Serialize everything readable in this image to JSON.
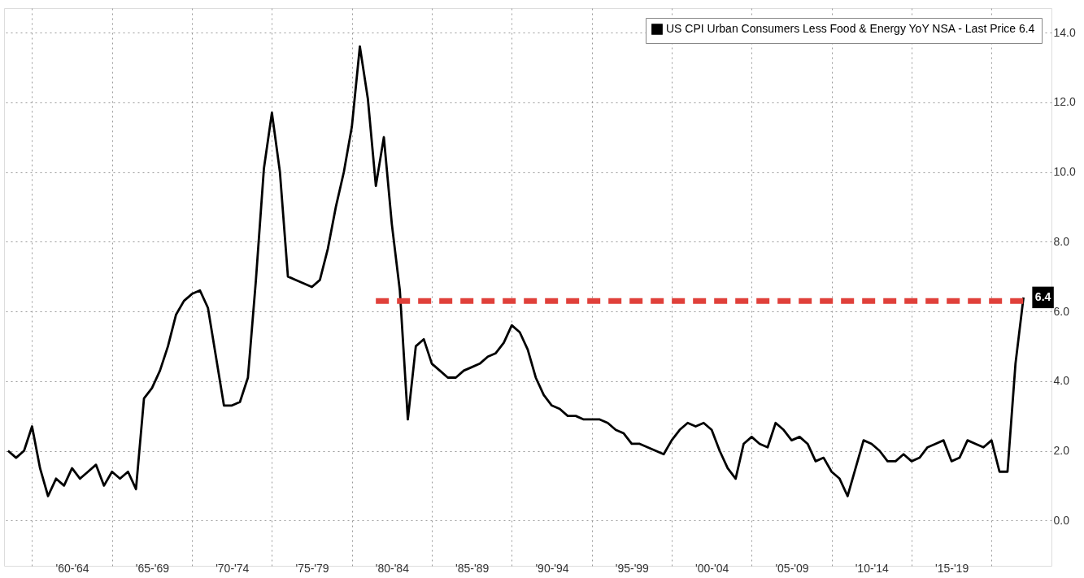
{
  "chart_data": {
    "type": "line",
    "categories": [
      null,
      null,
      null,
      null,
      null,
      null,
      null,
      null,
      "'60-'64",
      null,
      null,
      null,
      null,
      null,
      null,
      null,
      null,
      null,
      "'65-'69",
      null,
      null,
      null,
      null,
      null,
      null,
      null,
      null,
      null,
      "'70-'74",
      null,
      null,
      null,
      null,
      null,
      null,
      null,
      null,
      null,
      "'75-'79",
      null,
      null,
      null,
      null,
      null,
      null,
      null,
      null,
      null,
      "'80-'84",
      null,
      null,
      null,
      null,
      null,
      null,
      null,
      null,
      null,
      "'85-'89",
      null,
      null,
      null,
      null,
      null,
      null,
      null,
      null,
      null,
      "'90-'94",
      null,
      null,
      null,
      null,
      null,
      null,
      null,
      null,
      null,
      "'95-'99",
      null,
      null,
      null,
      null,
      null,
      null,
      null,
      null,
      null,
      "'00-'04",
      null,
      null,
      null,
      null,
      null,
      null,
      null,
      null,
      null,
      "'05-'09",
      null,
      null,
      null,
      null,
      null,
      null,
      null,
      null,
      null,
      "'10-'14",
      null,
      null,
      null,
      null,
      null,
      null,
      null,
      null,
      null,
      "'15-'19",
      null,
      null,
      null,
      null,
      null,
      null,
      null,
      null,
      null
    ],
    "ylim": [
      -1.3,
      14.7
    ],
    "yticks": [
      {
        "value": 0,
        "label": "0.0"
      },
      {
        "value": 2,
        "label": "2.0"
      },
      {
        "value": 4,
        "label": "4.0"
      },
      {
        "value": 6,
        "label": "6.0"
      },
      {
        "value": 8,
        "label": "8.0"
      },
      {
        "value": 10,
        "label": "10.0"
      },
      {
        "value": 12,
        "label": "12.0"
      },
      {
        "value": 14,
        "label": "14.0"
      }
    ],
    "grid": true,
    "legend": "top right",
    "series": [
      {
        "name": "US CPI Urban Consumers Less Food & Energy YoY NSA - Last Price 6.4",
        "color": "#000000",
        "values": [
          2.0,
          1.8,
          2.0,
          2.7,
          1.5,
          0.7,
          1.2,
          1.0,
          1.5,
          1.2,
          1.4,
          1.6,
          1.0,
          1.4,
          1.2,
          1.4,
          0.9,
          3.5,
          3.8,
          4.3,
          5.0,
          5.9,
          6.3,
          6.5,
          6.6,
          6.1,
          4.7,
          3.3,
          3.3,
          3.4,
          4.1,
          6.9,
          10.1,
          11.7,
          10.0,
          7.0,
          6.9,
          6.8,
          6.7,
          6.9,
          7.8,
          9.0,
          10.0,
          11.3,
          13.6,
          12.1,
          9.6,
          11.0,
          8.5,
          6.6,
          2.9,
          5.0,
          5.2,
          4.5,
          4.3,
          4.1,
          4.1,
          4.3,
          4.4,
          4.5,
          4.7,
          4.8,
          5.1,
          5.6,
          5.4,
          4.9,
          4.1,
          3.6,
          3.3,
          3.2,
          3.0,
          3.0,
          2.9,
          2.9,
          2.9,
          2.8,
          2.6,
          2.5,
          2.2,
          2.2,
          2.1,
          2.0,
          1.9,
          2.3,
          2.6,
          2.8,
          2.7,
          2.8,
          2.6,
          2.0,
          1.5,
          1.2,
          2.2,
          2.4,
          2.2,
          2.1,
          2.8,
          2.6,
          2.3,
          2.4,
          2.2,
          1.7,
          1.8,
          1.4,
          1.2,
          0.7,
          1.5,
          2.3,
          2.2,
          2.0,
          1.7,
          1.7,
          1.9,
          1.7,
          1.8,
          2.1,
          2.2,
          2.3,
          1.7,
          1.8,
          2.3,
          2.2,
          2.1,
          2.3,
          1.4,
          1.4,
          4.5,
          6.4
        ]
      },
      {
        "type": "line",
        "color": "#e0403a",
        "line_style": "dashed",
        "values": [
          null,
          null,
          null,
          null,
          null,
          null,
          null,
          null,
          null,
          null,
          null,
          null,
          null,
          null,
          null,
          null,
          null,
          null,
          null,
          null,
          null,
          null,
          null,
          null,
          null,
          null,
          null,
          null,
          null,
          null,
          null,
          null,
          null,
          null,
          null,
          null,
          null,
          null,
          null,
          null,
          null,
          null,
          null,
          null,
          null,
          null,
          6.3,
          6.3,
          6.3,
          6.3,
          6.3,
          6.3,
          6.3,
          6.3,
          6.3,
          6.3,
          6.3,
          6.3,
          6.3,
          6.3,
          6.3,
          6.3,
          6.3,
          6.3,
          6.3,
          6.3,
          6.3,
          6.3,
          6.3,
          6.3,
          6.3,
          6.3,
          6.3,
          6.3,
          6.3,
          6.3,
          6.3,
          6.3,
          6.3,
          6.3,
          6.3,
          6.3,
          6.3,
          6.3,
          6.3,
          6.3,
          6.3,
          6.3,
          6.3,
          6.3,
          6.3,
          6.3,
          6.3,
          6.3,
          6.3,
          6.3,
          6.3,
          6.3,
          6.3,
          6.3,
          6.3,
          6.3,
          6.3,
          6.3,
          6.3,
          6.3,
          6.3,
          6.3,
          6.3,
          6.3,
          6.3,
          6.3,
          6.3,
          6.3,
          6.3,
          6.3,
          6.3,
          6.3,
          6.3,
          6.3,
          6.3,
          6.3,
          6.3,
          6.3,
          6.3,
          6.3,
          6.3,
          6.3
        ]
      }
    ],
    "annotations": [
      "6.4"
    ]
  }
}
